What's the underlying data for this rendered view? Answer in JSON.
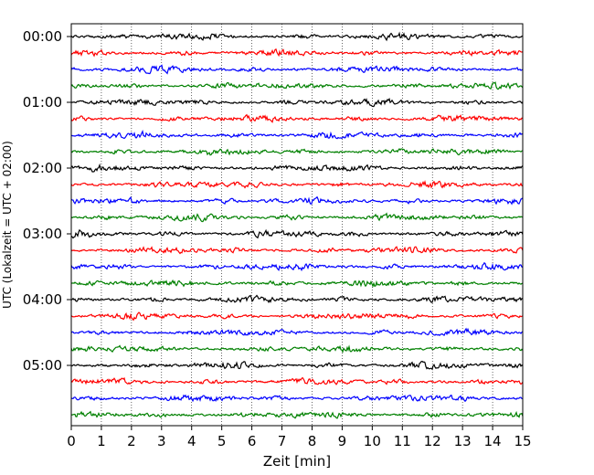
{
  "chart_data": {
    "type": "line",
    "title": "",
    "xlabel": "Zeit  [min]",
    "ylabel": "UTC (Lokalzeit = UTC + 02:00)",
    "xlim": [
      0,
      15
    ],
    "x_ticks": [
      "0",
      "1",
      "2",
      "3",
      "4",
      "5",
      "6",
      "7",
      "8",
      "9",
      "10",
      "11",
      "12",
      "13",
      "14",
      "15"
    ],
    "y_ticks": [
      "00:00",
      "01:00",
      "02:00",
      "03:00",
      "04:00",
      "05:00"
    ],
    "rows_per_hour": 4,
    "row_count": 24,
    "trace_colors": [
      "#000000",
      "#ff0000",
      "#0000ff",
      "#008000"
    ],
    "grid": "vertical dotted at each minute",
    "legend": "none"
  }
}
